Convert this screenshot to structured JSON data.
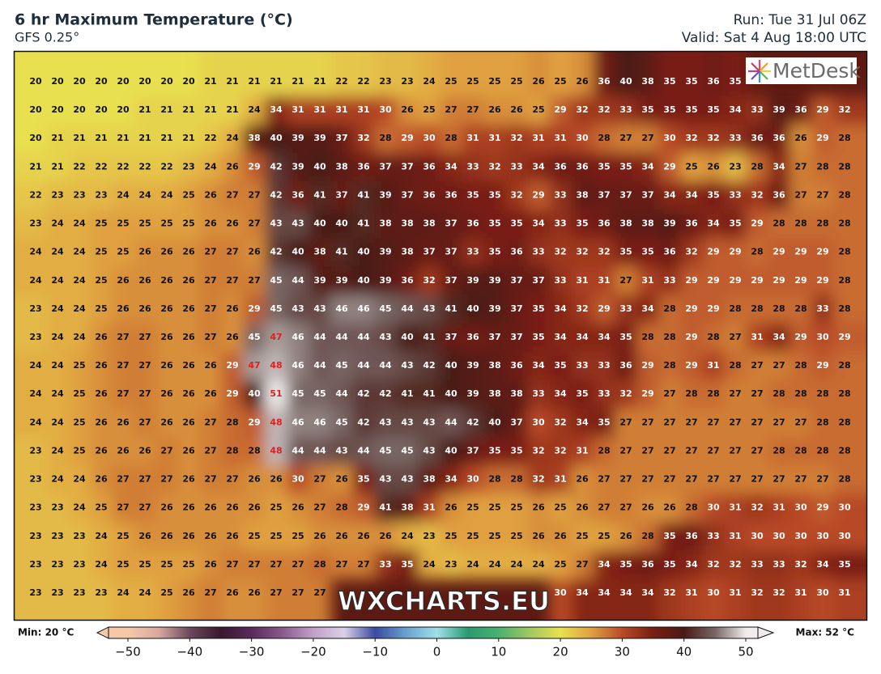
{
  "header": {
    "title": "6 hr Maximum Temperature (°C)",
    "model": "GFS 0.25°",
    "run": "Run: Tue 31 Jul 06Z",
    "valid": "Valid: Sat 4 Aug 18:00 UTC"
  },
  "logo": "MetDesk",
  "watermark": "WXCHARTS.EU",
  "grid": {
    "rows": [
      [
        20,
        20,
        20,
        20,
        20,
        20,
        20,
        20,
        21,
        21,
        21,
        21,
        21,
        21,
        22,
        22,
        23,
        23,
        24,
        25,
        25,
        25,
        25,
        26,
        25,
        26,
        36,
        40,
        38,
        35,
        35,
        36,
        35,
        null,
        null,
        null,
        null,
        null
      ],
      [
        20,
        20,
        20,
        20,
        20,
        21,
        21,
        21,
        21,
        21,
        24,
        34,
        31,
        31,
        31,
        31,
        30,
        26,
        25,
        27,
        27,
        26,
        26,
        25,
        29,
        32,
        32,
        33,
        35,
        35,
        35,
        35,
        34,
        33,
        39,
        36,
        29,
        32
      ],
      [
        20,
        21,
        21,
        21,
        21,
        21,
        21,
        21,
        22,
        24,
        38,
        40,
        39,
        39,
        37,
        32,
        28,
        29,
        30,
        28,
        31,
        31,
        32,
        31,
        31,
        30,
        28,
        27,
        27,
        30,
        32,
        32,
        33,
        36,
        36,
        26,
        29,
        28
      ],
      [
        21,
        21,
        22,
        22,
        22,
        22,
        22,
        23,
        24,
        26,
        29,
        42,
        39,
        40,
        38,
        36,
        37,
        37,
        36,
        34,
        33,
        32,
        33,
        34,
        36,
        36,
        35,
        35,
        34,
        29,
        25,
        26,
        23,
        28,
        34,
        27,
        28,
        28
      ],
      [
        22,
        23,
        23,
        23,
        24,
        24,
        24,
        25,
        26,
        27,
        27,
        42,
        36,
        41,
        37,
        41,
        39,
        37,
        36,
        36,
        35,
        35,
        32,
        29,
        33,
        38,
        37,
        37,
        37,
        34,
        34,
        35,
        33,
        32,
        36,
        27,
        27,
        28
      ],
      [
        23,
        24,
        24,
        25,
        25,
        25,
        25,
        25,
        26,
        26,
        27,
        43,
        43,
        40,
        40,
        41,
        38,
        38,
        38,
        37,
        36,
        35,
        35,
        34,
        33,
        35,
        36,
        38,
        38,
        39,
        36,
        34,
        35,
        29,
        28,
        28,
        28,
        28
      ],
      [
        24,
        24,
        24,
        25,
        25,
        26,
        26,
        26,
        27,
        27,
        26,
        42,
        40,
        38,
        41,
        40,
        39,
        38,
        37,
        37,
        33,
        35,
        36,
        33,
        32,
        32,
        32,
        35,
        35,
        36,
        32,
        29,
        29,
        28,
        29,
        29,
        29,
        28
      ],
      [
        24,
        24,
        24,
        25,
        26,
        26,
        26,
        26,
        27,
        27,
        27,
        45,
        44,
        39,
        39,
        40,
        39,
        36,
        32,
        37,
        39,
        39,
        37,
        37,
        33,
        31,
        31,
        27,
        31,
        33,
        29,
        29,
        29,
        29,
        29,
        29,
        29,
        28
      ],
      [
        23,
        24,
        24,
        25,
        26,
        26,
        26,
        26,
        27,
        26,
        29,
        45,
        43,
        43,
        46,
        46,
        45,
        44,
        43,
        41,
        40,
        39,
        37,
        35,
        34,
        32,
        29,
        33,
        34,
        28,
        29,
        29,
        28,
        28,
        28,
        28,
        33,
        28
      ],
      [
        23,
        24,
        24,
        26,
        27,
        27,
        26,
        26,
        27,
        26,
        45,
        47,
        46,
        44,
        44,
        44,
        43,
        40,
        41,
        37,
        36,
        37,
        37,
        35,
        34,
        34,
        34,
        35,
        28,
        28,
        29,
        28,
        27,
        31,
        34,
        29,
        30,
        29
      ],
      [
        24,
        24,
        25,
        26,
        27,
        27,
        26,
        26,
        26,
        29,
        47,
        48,
        46,
        44,
        45,
        44,
        44,
        43,
        42,
        40,
        39,
        38,
        36,
        34,
        35,
        33,
        33,
        36,
        29,
        28,
        29,
        31,
        28,
        27,
        27,
        28,
        29,
        28
      ],
      [
        24,
        24,
        25,
        26,
        27,
        27,
        26,
        26,
        26,
        29,
        40,
        51,
        45,
        45,
        44,
        42,
        42,
        41,
        41,
        40,
        39,
        38,
        38,
        33,
        34,
        35,
        33,
        32,
        29,
        27,
        28,
        28,
        27,
        27,
        28,
        28,
        28,
        28
      ],
      [
        24,
        24,
        25,
        26,
        26,
        27,
        26,
        26,
        27,
        28,
        29,
        48,
        46,
        46,
        45,
        42,
        43,
        43,
        43,
        44,
        42,
        40,
        37,
        30,
        32,
        34,
        35,
        27,
        27,
        27,
        27,
        27,
        27,
        27,
        27,
        27,
        28,
        28
      ],
      [
        23,
        24,
        25,
        26,
        26,
        26,
        27,
        26,
        27,
        28,
        28,
        48,
        44,
        44,
        43,
        44,
        45,
        45,
        43,
        40,
        37,
        35,
        35,
        32,
        32,
        31,
        28,
        27,
        27,
        27,
        27,
        27,
        27,
        27,
        28,
        28,
        28,
        28
      ],
      [
        23,
        24,
        24,
        26,
        27,
        27,
        27,
        26,
        27,
        27,
        26,
        26,
        30,
        27,
        26,
        35,
        43,
        43,
        38,
        34,
        30,
        28,
        28,
        32,
        31,
        26,
        27,
        27,
        27,
        27,
        27,
        27,
        27,
        27,
        27,
        27,
        27,
        28
      ],
      [
        23,
        23,
        24,
        25,
        27,
        27,
        26,
        26,
        26,
        26,
        26,
        25,
        26,
        27,
        28,
        29,
        41,
        38,
        31,
        26,
        25,
        25,
        25,
        26,
        25,
        26,
        27,
        27,
        26,
        26,
        28,
        30,
        31,
        32,
        31,
        30,
        29,
        30
      ],
      [
        23,
        23,
        23,
        24,
        25,
        26,
        26,
        26,
        26,
        26,
        25,
        25,
        25,
        26,
        26,
        26,
        26,
        24,
        23,
        25,
        25,
        25,
        25,
        26,
        26,
        25,
        25,
        26,
        28,
        35,
        36,
        33,
        31,
        30,
        30,
        30,
        30,
        30
      ],
      [
        23,
        23,
        23,
        24,
        25,
        25,
        25,
        25,
        26,
        27,
        27,
        27,
        27,
        28,
        27,
        27,
        33,
        35,
        24,
        23,
        24,
        24,
        24,
        24,
        25,
        27,
        34,
        35,
        36,
        35,
        34,
        32,
        32,
        33,
        33,
        32,
        34,
        35
      ],
      [
        23,
        23,
        23,
        23,
        24,
        24,
        25,
        26,
        27,
        26,
        26,
        27,
        27,
        27,
        null,
        null,
        null,
        null,
        null,
        null,
        null,
        null,
        null,
        null,
        30,
        34,
        34,
        34,
        34,
        32,
        31,
        30,
        31,
        32,
        32,
        31,
        30,
        31
      ]
    ]
  },
  "colorbar": {
    "min_label": "Min: 20 °C",
    "max_label": "Max: 52 °C",
    "ticks": [
      {
        "value": -50,
        "label": "−50"
      },
      {
        "value": -40,
        "label": "−40"
      },
      {
        "value": -30,
        "label": "−30"
      },
      {
        "value": -20,
        "label": "−20"
      },
      {
        "value": -10,
        "label": "−10"
      },
      0,
      10,
      20,
      30,
      40,
      50
    ]
  }
}
